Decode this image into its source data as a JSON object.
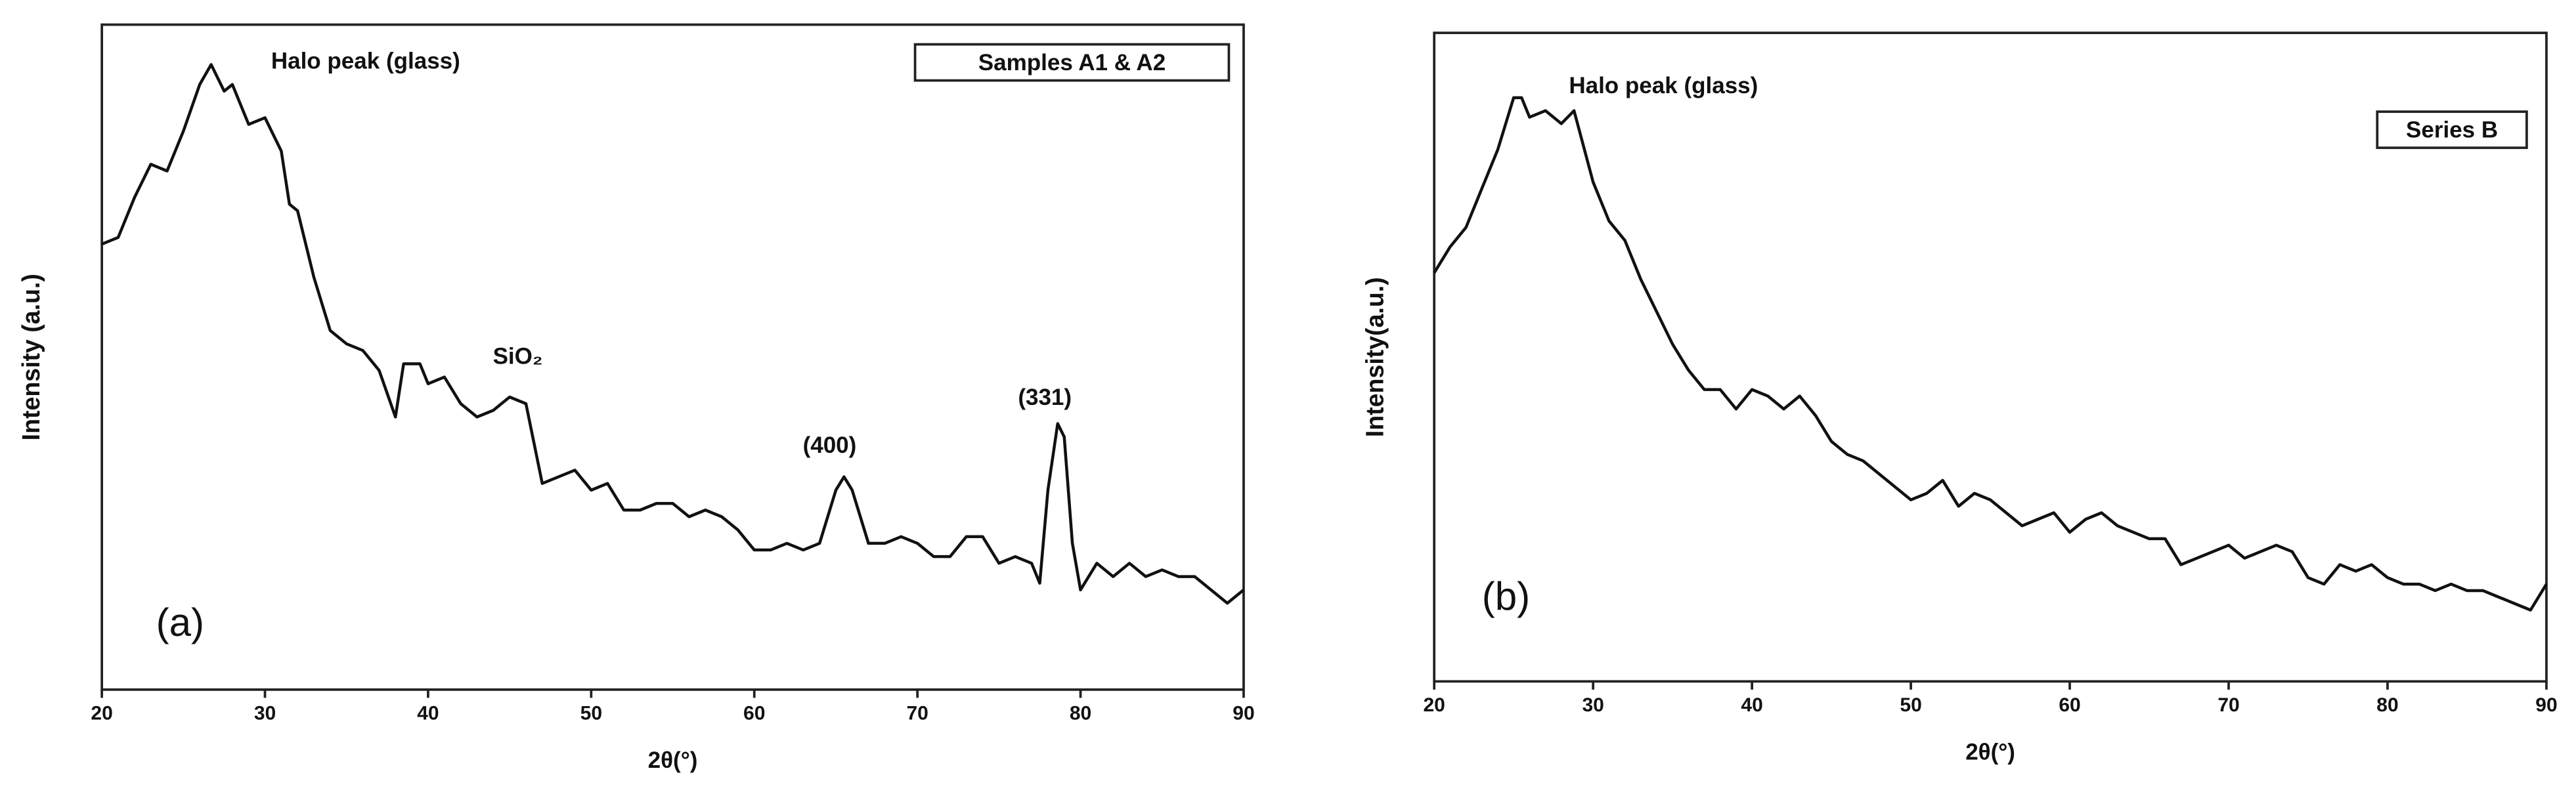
{
  "chart_data": [
    {
      "type": "line",
      "xlabel": "2θ(°)",
      "ylabel": "Intensity (a.u.)",
      "panel_label": "(a)",
      "annotations": [
        "Halo peak (glass)",
        "SiO₂",
        "(400)",
        "(331)"
      ],
      "x": [
        20,
        21,
        22,
        23,
        24,
        25,
        26,
        26.7,
        27.5,
        28,
        29,
        30,
        31,
        31.5,
        32,
        33,
        34,
        35,
        36,
        37,
        38,
        38.5,
        39.5,
        40,
        41,
        42,
        43,
        44,
        45,
        46,
        47,
        48,
        49,
        50,
        51,
        52,
        53,
        54,
        55,
        56,
        57,
        58,
        59,
        60,
        61,
        62,
        63,
        64,
        65,
        65.5,
        66,
        67,
        68,
        69,
        70,
        71,
        72,
        73,
        74,
        75,
        76,
        77,
        77.5,
        78,
        78.6,
        79,
        79.5,
        80,
        81,
        82,
        83,
        84,
        85,
        86,
        87,
        88,
        89,
        90
      ],
      "series": [
        {
          "name": "Samples A1 & A2",
          "color": "#111111",
          "values": [
            67,
            68,
            74,
            79,
            78,
            84,
            91,
            94,
            90,
            91,
            85,
            86,
            81,
            73,
            72,
            62,
            54,
            52,
            51,
            48,
            41,
            49,
            49,
            46,
            47,
            43,
            41,
            42,
            44,
            43,
            31,
            32,
            33,
            30,
            31,
            27,
            27,
            28,
            28,
            26,
            27,
            26,
            24,
            21,
            21,
            22,
            21,
            22,
            30,
            32,
            30,
            22,
            22,
            23,
            22,
            20,
            20,
            23,
            23,
            19,
            20,
            19,
            16,
            30,
            40,
            38,
            22,
            15,
            19,
            17,
            19,
            17,
            18,
            17,
            17,
            15,
            13,
            15
          ]
        }
      ],
      "xlim": [
        20,
        90
      ],
      "xticks": [
        20,
        30,
        40,
        50,
        60,
        70,
        80,
        90
      ],
      "ylim": [
        0,
        100
      ]
    },
    {
      "type": "line",
      "xlabel": "2θ(°)",
      "ylabel": "Intensity(a.u.)",
      "panel_label": "(b)",
      "annotations": [
        "Halo peak (glass)"
      ],
      "x": [
        20,
        21,
        22,
        23,
        24,
        25,
        25.5,
        26,
        27,
        28,
        28.8,
        30,
        31,
        32,
        33,
        34,
        35,
        36,
        37,
        38,
        39,
        40,
        41,
        42,
        43,
        44,
        45,
        46,
        47,
        48,
        49,
        50,
        51,
        52,
        53,
        54,
        55,
        56,
        57,
        58,
        59,
        60,
        61,
        62,
        63,
        64,
        65,
        66,
        67,
        68,
        69,
        70,
        71,
        72,
        73,
        74,
        75,
        76,
        77,
        78,
        79,
        80,
        81,
        82,
        83,
        84,
        85,
        86,
        87,
        88,
        89,
        90
      ],
      "series": [
        {
          "name": "Series B",
          "color": "#111111",
          "values": [
            63,
            67,
            70,
            76,
            82,
            90,
            90,
            87,
            88,
            86,
            88,
            77,
            71,
            68,
            62,
            57,
            52,
            48,
            45,
            45,
            42,
            45,
            44,
            42,
            44,
            41,
            37,
            35,
            34,
            32,
            30,
            28,
            29,
            31,
            27,
            29,
            28,
            26,
            24,
            25,
            26,
            23,
            25,
            26,
            24,
            23,
            22,
            22,
            18,
            19,
            20,
            21,
            19,
            20,
            21,
            20,
            16,
            15,
            18,
            17,
            18,
            16,
            15,
            15,
            14,
            15,
            14,
            14,
            13,
            12,
            11,
            15
          ]
        }
      ],
      "xlim": [
        20,
        90
      ],
      "xticks": [
        20,
        30,
        40,
        50,
        60,
        70,
        80,
        90
      ],
      "ylim": [
        0,
        100
      ]
    }
  ]
}
